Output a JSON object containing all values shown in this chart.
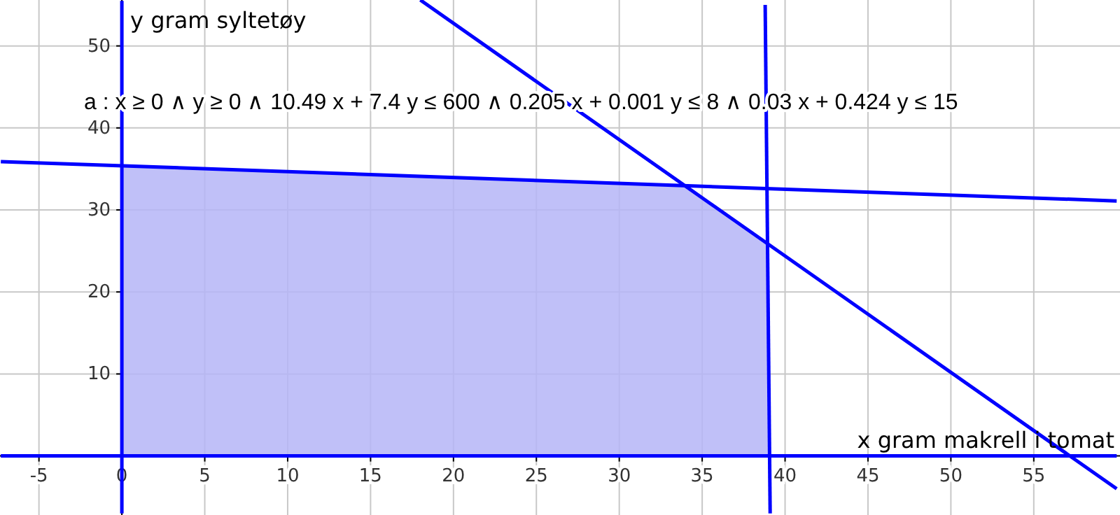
{
  "chart_data": {
    "type": "line",
    "xlabel": "x gram makrell i tomat",
    "ylabel": "y gram syltetøy",
    "annotations": [
      "a : x ≥ 0 ∧ y ≥ 0 ∧ 10.49 x + 7.4 y ≤ 600 ∧ 0.205 x + 0.001 y ≤ 8 ∧ 0.03 x + 0.424 y ≤ 15"
    ],
    "xlim": [
      -7.35,
      60.2
    ],
    "ylim": [
      -7.2,
      55.6
    ],
    "xticks": [
      -5,
      0,
      5,
      10,
      15,
      20,
      25,
      30,
      35,
      40,
      45,
      50,
      55
    ],
    "yticks": [
      10,
      20,
      30,
      40,
      50
    ],
    "grid": true,
    "series": [
      {
        "type": "area",
        "color": "#b5b5f7",
        "x": [
          0,
          0,
          33.9,
          38.9,
          39
        ],
        "values": [
          0,
          35.4,
          33,
          25.9,
          0
        ]
      },
      {
        "color": "#0000ff",
        "x": [
          18,
          60
        ],
        "values": [
          55.6,
          -4
        ]
      },
      {
        "color": "#0000ff",
        "x": [
          39.1,
          38.8
        ],
        "values": [
          -7,
          55
        ]
      },
      {
        "color": "#0000ff",
        "x": [
          -7.3,
          60
        ],
        "values": [
          35.9,
          31.1
        ]
      },
      {
        "color": "#0000ff",
        "x": [
          0,
          0
        ],
        "values": [
          -7,
          55.5
        ]
      },
      {
        "color": "#0000ff",
        "x": [
          -7.3,
          60
        ],
        "values": [
          0,
          0
        ]
      }
    ]
  }
}
